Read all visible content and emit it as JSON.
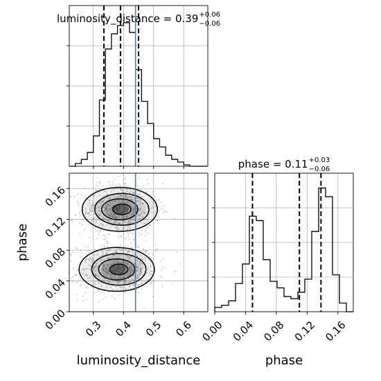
{
  "chart_data": {
    "type": "corner",
    "params": [
      "luminosity_distance",
      "phase"
    ],
    "truths": {
      "luminosity_distance": 0.44
    },
    "panels": [
      {
        "id": "hist-ld",
        "type": "histogram",
        "param": "luminosity_distance",
        "title": {
          "prefix": "luminosity_distance = 0.39",
          "plus": "+0.06",
          "minus": "−0.06"
        },
        "quantiles": [
          0.335,
          0.39,
          0.45
        ],
        "xlim": [
          0.22,
          0.68
        ],
        "bin_edges": [
          0.22,
          0.24,
          0.26,
          0.28,
          0.3,
          0.32,
          0.34,
          0.36,
          0.38,
          0.4,
          0.42,
          0.44,
          0.46,
          0.48,
          0.5,
          0.52,
          0.54,
          0.56,
          0.58,
          0.6,
          0.62,
          0.64,
          0.66,
          0.68
        ],
        "counts": [
          0,
          2,
          5,
          10,
          22,
          48,
          85,
          96,
          102,
          104,
          97,
          70,
          47,
          31,
          20,
          14,
          8,
          5,
          3,
          1,
          0,
          0,
          0
        ]
      },
      {
        "id": "hist-phase",
        "type": "histogram",
        "param": "phase",
        "title": {
          "prefix": "phase = 0.11",
          "plus": "+0.03",
          "minus": "−0.06"
        },
        "quantiles": [
          0.049,
          0.11,
          0.138
        ],
        "xlim": [
          0.0,
          0.18
        ],
        "bin_edges": [
          0.0,
          0.009,
          0.018,
          0.027,
          0.036,
          0.045,
          0.054,
          0.063,
          0.072,
          0.081,
          0.09,
          0.099,
          0.108,
          0.117,
          0.126,
          0.135,
          0.144,
          0.153,
          0.162,
          0.171,
          0.18
        ],
        "counts": [
          2,
          3,
          5,
          13,
          22,
          44,
          42,
          24,
          14,
          11,
          7,
          6,
          9,
          15,
          37,
          57,
          53,
          17,
          4,
          0
        ]
      },
      {
        "id": "scatter-2d",
        "type": "2d-density",
        "x": "luminosity_distance",
        "y": "phase",
        "xlim": [
          0.22,
          0.68
        ],
        "ylim": [
          0.0,
          0.18
        ],
        "modes": [
          {
            "x": 0.39,
            "y": 0.133,
            "sx": 0.05,
            "sy": 0.012,
            "weight": 0.5
          },
          {
            "x": 0.38,
            "y": 0.055,
            "sx": 0.05,
            "sy": 0.012,
            "weight": 0.5
          }
        ]
      }
    ],
    "axes": {
      "x_ld_ticks": [
        "0.3",
        "0.4",
        "0.5",
        "0.6"
      ],
      "x_phase_ticks": [
        "0.00",
        "0.04",
        "0.08",
        "0.12",
        "0.16"
      ],
      "y_phase_ticks": [
        "0.00",
        "0.04",
        "0.08",
        "0.12",
        "0.16"
      ],
      "xlabel_left": "luminosity_distance",
      "xlabel_right": "phase",
      "ylabel": "phase"
    },
    "grid": true,
    "colors": {
      "hist": "#000000",
      "truth": "#4682b4",
      "grid": "#b0b0b0",
      "scatter": "#808080"
    }
  }
}
